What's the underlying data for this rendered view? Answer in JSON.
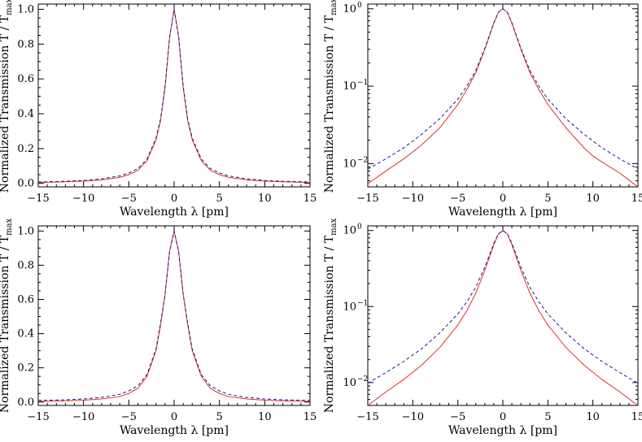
{
  "chart_data": [
    {
      "type": "line",
      "yscale": "linear",
      "xlim": [
        -15,
        15
      ],
      "ylim": [
        -0.02,
        1.03
      ],
      "xticks": [
        -15,
        -10,
        -5,
        0,
        5,
        10,
        15
      ],
      "yticks": [
        0.0,
        0.2,
        0.4,
        0.6,
        0.8,
        1.0
      ],
      "xtick_labels": [
        "−15",
        "−10",
        "−5",
        "0",
        "5",
        "10",
        "15"
      ],
      "ytick_labels": [
        "0.0",
        "0.2",
        "0.4",
        "0.6",
        "0.8",
        "1.0"
      ],
      "xlabel": "Wavelength  λ  [pm]",
      "ylabel": "Normalized Transmission  T / T",
      "ylabel_sub": "max",
      "series": [
        {
          "style": "solid",
          "color": "#e03030",
          "x": [
            -15,
            -12,
            -10,
            -8,
            -6,
            -5,
            -4,
            -3,
            -2,
            -1.5,
            -1,
            -0.5,
            0,
            0.5,
            1,
            1.5,
            2,
            3,
            4,
            5,
            6,
            8,
            10,
            12,
            15
          ],
          "y": [
            0.005,
            0.009,
            0.013,
            0.02,
            0.035,
            0.05,
            0.075,
            0.13,
            0.25,
            0.36,
            0.55,
            0.84,
            1.0,
            0.84,
            0.55,
            0.36,
            0.25,
            0.13,
            0.075,
            0.05,
            0.035,
            0.02,
            0.013,
            0.009,
            0.005
          ]
        },
        {
          "style": "dashed",
          "color": "#1a1a9a",
          "x": [
            -15,
            -12,
            -10,
            -8,
            -6,
            -5,
            -4,
            -3,
            -2,
            -1.5,
            -1,
            -0.5,
            0,
            0.5,
            1,
            1.5,
            2,
            3,
            4,
            5,
            6,
            8,
            10,
            12,
            15
          ],
          "y": [
            0.008,
            0.012,
            0.017,
            0.026,
            0.043,
            0.06,
            0.085,
            0.14,
            0.26,
            0.37,
            0.56,
            0.84,
            1.0,
            0.84,
            0.56,
            0.37,
            0.26,
            0.14,
            0.085,
            0.06,
            0.043,
            0.026,
            0.017,
            0.012,
            0.008
          ]
        }
      ]
    },
    {
      "type": "line",
      "yscale": "log",
      "xlim": [
        -15,
        15
      ],
      "ylim": [
        0.005,
        1.15
      ],
      "xticks": [
        -15,
        -10,
        -5,
        0,
        5,
        10,
        15
      ],
      "yticks": [
        0.01,
        0.1,
        1
      ],
      "xtick_labels": [
        "−15",
        "−10",
        "−5",
        "0",
        "5",
        "10",
        "15"
      ],
      "ytick_labels_base": [
        "10",
        "10",
        "10"
      ],
      "ytick_labels_exp": [
        "−2",
        "−1",
        "0"
      ],
      "xlabel": "Wavelength  λ  [pm]",
      "ylabel": "Normalized Transmission  T / T",
      "ylabel_sub": "max",
      "series": [
        {
          "style": "solid",
          "color": "#e03030",
          "x": [
            -15,
            -13,
            -11,
            -9,
            -7,
            -5,
            -4,
            -3,
            -2,
            -1,
            -0.5,
            0,
            0.5,
            1,
            2,
            3,
            4,
            5,
            7,
            9,
            10,
            11,
            13,
            15
          ],
          "y": [
            0.0055,
            0.008,
            0.0115,
            0.0175,
            0.029,
            0.058,
            0.09,
            0.15,
            0.3,
            0.65,
            0.9,
            1.0,
            0.9,
            0.65,
            0.3,
            0.15,
            0.09,
            0.058,
            0.029,
            0.016,
            0.0125,
            0.0105,
            0.0075,
            0.005
          ]
        },
        {
          "style": "dashed",
          "color": "#1a1a9a",
          "x": [
            -15,
            -13,
            -11,
            -9,
            -7,
            -5,
            -4,
            -3,
            -2,
            -1,
            -0.5,
            0,
            0.5,
            1,
            2,
            3,
            4,
            5,
            7,
            9,
            11,
            13,
            15
          ],
          "y": [
            0.0085,
            0.0115,
            0.016,
            0.024,
            0.038,
            0.068,
            0.1,
            0.16,
            0.31,
            0.66,
            0.9,
            1.0,
            0.9,
            0.66,
            0.31,
            0.16,
            0.1,
            0.068,
            0.038,
            0.024,
            0.016,
            0.0115,
            0.0085
          ]
        }
      ]
    },
    {
      "type": "line",
      "yscale": "linear",
      "xlim": [
        -15,
        15
      ],
      "ylim": [
        -0.02,
        1.03
      ],
      "xticks": [
        -15,
        -10,
        -5,
        0,
        5,
        10,
        15
      ],
      "yticks": [
        0.0,
        0.2,
        0.4,
        0.6,
        0.8,
        1.0
      ],
      "xtick_labels": [
        "−15",
        "−10",
        "−5",
        "0",
        "5",
        "10",
        "15"
      ],
      "ytick_labels": [
        "0.0",
        "0.2",
        "0.4",
        "0.6",
        "0.8",
        "1.0"
      ],
      "xlabel": "Wavelength  λ  [pm]",
      "ylabel": "Normalized Transmission  T / T",
      "ylabel_sub": "max",
      "series": [
        {
          "style": "solid",
          "color": "#e03030",
          "x": [
            -15,
            -12,
            -10,
            -8,
            -6,
            -5,
            -4,
            -3,
            -2,
            -1.5,
            -1,
            -0.5,
            0,
            0.5,
            1,
            1.5,
            2,
            3,
            4,
            5,
            6,
            8,
            10,
            12,
            15
          ],
          "y": [
            0.004,
            0.007,
            0.011,
            0.018,
            0.032,
            0.05,
            0.08,
            0.15,
            0.3,
            0.45,
            0.63,
            0.88,
            1.0,
            0.88,
            0.63,
            0.45,
            0.3,
            0.15,
            0.08,
            0.05,
            0.032,
            0.018,
            0.011,
            0.007,
            0.004
          ]
        },
        {
          "style": "dashed",
          "color": "#1a1a9a",
          "x": [
            -15,
            -12,
            -10,
            -8,
            -6,
            -5,
            -4,
            -3,
            -2,
            -1.5,
            -1,
            -0.5,
            0,
            0.5,
            1,
            1.5,
            2,
            3,
            4,
            5,
            6,
            8,
            10,
            12,
            15
          ],
          "y": [
            0.009,
            0.013,
            0.018,
            0.027,
            0.045,
            0.065,
            0.095,
            0.16,
            0.31,
            0.46,
            0.63,
            0.88,
            1.0,
            0.88,
            0.63,
            0.46,
            0.31,
            0.16,
            0.095,
            0.065,
            0.045,
            0.027,
            0.018,
            0.013,
            0.009
          ]
        }
      ]
    },
    {
      "type": "line",
      "yscale": "log",
      "xlim": [
        -15,
        15
      ],
      "ylim": [
        0.005,
        1.15
      ],
      "xticks": [
        -15,
        -10,
        -5,
        0,
        5,
        10,
        15
      ],
      "yticks": [
        0.01,
        0.1,
        1
      ],
      "xtick_labels": [
        "−15",
        "−10",
        "−5",
        "0",
        "5",
        "10",
        "15"
      ],
      "ytick_labels_base": [
        "10",
        "10",
        "10"
      ],
      "ytick_labels_exp": [
        "−2",
        "−1",
        "0"
      ],
      "xlabel": "Wavelength  λ  [pm]",
      "ylabel": "Normalized Transmission  T / T",
      "ylabel_sub": "max",
      "series": [
        {
          "style": "solid",
          "color": "#e03030",
          "x": [
            -15,
            -13,
            -11,
            -9,
            -7,
            -5,
            -4,
            -3,
            -2,
            -1,
            -0.5,
            0,
            0.5,
            1,
            2,
            3,
            4,
            5,
            7,
            9,
            11,
            13,
            15
          ],
          "y": [
            0.005,
            0.0075,
            0.011,
            0.017,
            0.029,
            0.057,
            0.088,
            0.15,
            0.3,
            0.65,
            0.9,
            1.0,
            0.9,
            0.65,
            0.3,
            0.15,
            0.088,
            0.057,
            0.029,
            0.017,
            0.011,
            0.0075,
            0.005
          ]
        },
        {
          "style": "dashed",
          "color": "#1a1a9a",
          "x": [
            -15,
            -13,
            -11,
            -9,
            -7,
            -5,
            -4,
            -3,
            -2,
            -1,
            -0.5,
            0,
            0.5,
            1,
            2,
            3,
            4,
            5,
            7,
            9,
            11,
            13,
            15
          ],
          "y": [
            0.0098,
            0.0135,
            0.019,
            0.028,
            0.045,
            0.08,
            0.115,
            0.18,
            0.33,
            0.68,
            0.9,
            1.0,
            0.9,
            0.68,
            0.33,
            0.18,
            0.115,
            0.08,
            0.045,
            0.028,
            0.019,
            0.0135,
            0.0098
          ]
        }
      ]
    }
  ]
}
